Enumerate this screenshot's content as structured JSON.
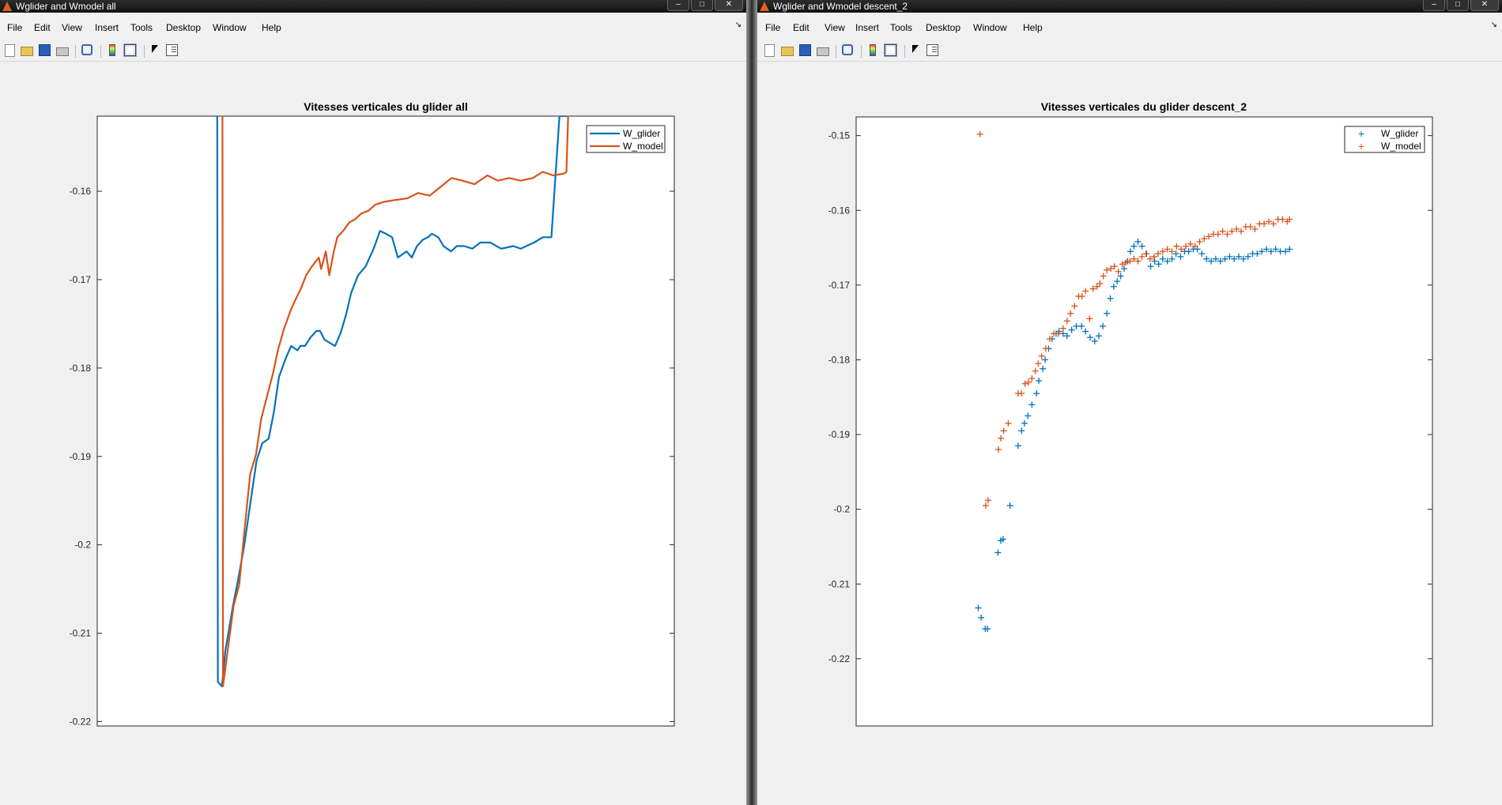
{
  "windows": [
    {
      "title": "Wglider and Wmodel all",
      "menu": [
        "File",
        "Edit",
        "View",
        "Insert",
        "Tools",
        "Desktop",
        "Window",
        "Help"
      ],
      "chart_title": "Vitesses verticales du glider all",
      "yticks": [
        "-0.16",
        "-0.17",
        "-0.18",
        "-0.19",
        "-0.2",
        "-0.21",
        "-0.22"
      ],
      "legend": [
        "W_glider",
        "W_model"
      ]
    },
    {
      "title": "Wglider and Wmodel descent_2",
      "menu": [
        "File",
        "Edit",
        "View",
        "Insert",
        "Tools",
        "Desktop",
        "Window",
        "Help"
      ],
      "chart_title": "Vitesses verticales du glider descent_2",
      "yticks": [
        "-0.15",
        "-0.16",
        "-0.17",
        "-0.18",
        "-0.19",
        "-0.2",
        "-0.21",
        "-0.22"
      ],
      "legend": [
        "W_glider",
        "W_model"
      ]
    }
  ],
  "colors": {
    "w_glider": "#0072bd",
    "w_model": "#d95319"
  },
  "chart_data": [
    {
      "type": "line",
      "title": "Vitesses verticales du glider all",
      "xlabel": "",
      "ylabel": "",
      "xlim": [
        0,
        100
      ],
      "ylim": [
        -0.2205,
        -0.1515
      ],
      "grid": false,
      "legend_position": "top-right",
      "series": [
        {
          "name": "W_glider",
          "x": [
            20.8,
            20.9,
            21.6,
            22.2,
            23.5,
            24.4,
            25.5,
            26.6,
            27.6,
            28.6,
            29.7,
            30.6,
            31.5,
            32.6,
            33.6,
            34.7,
            35.2,
            36.0,
            37.0,
            38.0,
            38.6,
            39.4,
            41.2,
            42.2,
            43.1,
            44.0,
            45.2,
            46.5,
            47.9,
            49.0,
            50.0,
            51.1,
            52.1,
            53.6,
            54.5,
            55.4,
            56.4,
            57.3,
            58.0,
            59.1,
            60.0,
            61.3,
            62.3,
            63.6,
            65.0,
            66.4,
            68.1,
            70.0,
            72.1,
            73.4,
            75.7,
            77.2,
            78.7,
            80.1,
            81.5,
            81.6,
            81.7
          ],
          "y": [
            -0.1515,
            -0.2155,
            -0.216,
            -0.212,
            -0.207,
            -0.204,
            -0.2,
            -0.195,
            -0.1905,
            -0.1885,
            -0.188,
            -0.185,
            -0.181,
            -0.179,
            -0.1775,
            -0.178,
            -0.1775,
            -0.1775,
            -0.1765,
            -0.1758,
            -0.1758,
            -0.1768,
            -0.1775,
            -0.176,
            -0.174,
            -0.1715,
            -0.1695,
            -0.1685,
            -0.1665,
            -0.1645,
            -0.1648,
            -0.1652,
            -0.1675,
            -0.1668,
            -0.1675,
            -0.1662,
            -0.1655,
            -0.1652,
            -0.1648,
            -0.1652,
            -0.1662,
            -0.1668,
            -0.1662,
            -0.1662,
            -0.1665,
            -0.1658,
            -0.1658,
            -0.1665,
            -0.1662,
            -0.1665,
            -0.1658,
            -0.1652,
            -0.1652,
            -0.1515,
            -0.1515,
            -0.1515,
            -0.1515
          ]
        },
        {
          "name": "W_model",
          "x": [
            21.7,
            21.8,
            22.7,
            23.6,
            24.6,
            25.5,
            26.5,
            27.5,
            28.4,
            28.9,
            29.5,
            30.5,
            31.3,
            32.4,
            33.5,
            34.4,
            35.3,
            36.2,
            37.2,
            38.4,
            38.8,
            39.6,
            40.2,
            41.0,
            41.6,
            42.6,
            43.7,
            44.6,
            45.8,
            47.0,
            48.2,
            49.7,
            51.5,
            53.7,
            55.6,
            57.6,
            59.5,
            61.4,
            63.3,
            65.4,
            67.6,
            69.4,
            71.4,
            73.4,
            75.5,
            77.2,
            79.0,
            80.9,
            81.3,
            81.6,
            81.7
          ],
          "y": [
            -0.1515,
            -0.216,
            -0.2115,
            -0.207,
            -0.2045,
            -0.1985,
            -0.192,
            -0.1898,
            -0.1858,
            -0.1845,
            -0.183,
            -0.1805,
            -0.178,
            -0.1755,
            -0.1735,
            -0.1722,
            -0.171,
            -0.1695,
            -0.1685,
            -0.1675,
            -0.1688,
            -0.1668,
            -0.1695,
            -0.1668,
            -0.1652,
            -0.1645,
            -0.1635,
            -0.1632,
            -0.1625,
            -0.1622,
            -0.1615,
            -0.1612,
            -0.161,
            -0.1608,
            -0.1602,
            -0.1605,
            -0.1595,
            -0.1585,
            -0.1588,
            -0.1592,
            -0.1582,
            -0.1588,
            -0.1585,
            -0.1588,
            -0.1585,
            -0.1578,
            -0.1582,
            -0.158,
            -0.1578,
            -0.1515,
            -0.1515
          ]
        }
      ]
    },
    {
      "type": "scatter",
      "title": "Vitesses verticales du glider descent_2",
      "xlabel": "",
      "ylabel": "",
      "xlim": [
        0,
        100
      ],
      "ylim": [
        -0.229,
        -0.1475
      ],
      "grid": false,
      "legend_position": "top-right",
      "series": [
        {
          "name": "W_glider",
          "x": [
            21.2,
            21.7,
            22.4,
            22.8,
            24.6,
            25.1,
            25.5,
            26.7,
            28.1,
            28.7,
            29.2,
            29.8,
            30.5,
            31.3,
            31.7,
            32.4,
            32.8,
            33.4,
            34.0,
            34.7,
            35.2,
            35.9,
            36.6,
            37.4,
            38.2,
            39.1,
            39.8,
            40.6,
            41.4,
            42.1,
            42.8,
            43.5,
            44.1,
            44.7,
            45.3,
            45.9,
            46.5,
            47.1,
            47.6,
            48.2,
            48.9,
            49.6,
            50.4,
            51.1,
            51.8,
            52.5,
            53.2,
            54.0,
            54.8,
            55.5,
            56.3,
            57.0,
            57.7,
            58.5,
            59.2,
            60.0,
            60.8,
            61.6,
            62.4,
            63.2,
            64.0,
            64.8,
            65.6,
            66.4,
            67.2,
            68.0,
            68.8,
            69.6,
            70.4,
            71.2,
            72.0,
            72.8,
            73.6,
            74.5,
            75.2
          ],
          "y": [
            -0.2132,
            -0.2145,
            -0.216,
            -0.216,
            -0.2058,
            -0.2042,
            -0.204,
            -0.1995,
            -0.1915,
            -0.1895,
            -0.1885,
            -0.1875,
            -0.186,
            -0.1845,
            -0.1828,
            -0.1812,
            -0.18,
            -0.1785,
            -0.1772,
            -0.1765,
            -0.1762,
            -0.1765,
            -0.1768,
            -0.176,
            -0.1755,
            -0.1755,
            -0.1762,
            -0.177,
            -0.1775,
            -0.1768,
            -0.1755,
            -0.1738,
            -0.1718,
            -0.1702,
            -0.1695,
            -0.1688,
            -0.1678,
            -0.1668,
            -0.1655,
            -0.1648,
            -0.1642,
            -0.1648,
            -0.1658,
            -0.1675,
            -0.1668,
            -0.1672,
            -0.1665,
            -0.1668,
            -0.1665,
            -0.1658,
            -0.1662,
            -0.1655,
            -0.1655,
            -0.1652,
            -0.1652,
            -0.1658,
            -0.1665,
            -0.1668,
            -0.1665,
            -0.1668,
            -0.1665,
            -0.1662,
            -0.1665,
            -0.1662,
            -0.1665,
            -0.1662,
            -0.1658,
            -0.1658,
            -0.1655,
            -0.1652,
            -0.1655,
            -0.1652,
            -0.1655,
            -0.1655,
            -0.1652
          ],
          "marker": "+"
        },
        {
          "name": "W_model",
          "x": [
            21.5,
            22.5,
            22.9,
            24.7,
            25.1,
            25.6,
            26.4,
            28.1,
            28.7,
            29.3,
            29.9,
            30.5,
            31.1,
            31.6,
            32.2,
            32.9,
            33.6,
            34.3,
            35.1,
            35.9,
            36.6,
            37.2,
            37.9,
            38.6,
            39.2,
            39.8,
            40.5,
            41.1,
            41.8,
            42.3,
            42.9,
            43.5,
            44.2,
            44.8,
            45.5,
            46.2,
            46.8,
            47.5,
            48.2,
            48.9,
            49.6,
            50.3,
            51.0,
            51.7,
            52.4,
            53.2,
            54.0,
            54.8,
            55.6,
            56.4,
            57.2,
            58.0,
            58.8,
            59.6,
            60.4,
            61.2,
            62.0,
            62.8,
            63.6,
            64.4,
            65.2,
            66.0,
            66.8,
            67.6,
            68.4,
            69.2,
            70.0,
            70.8,
            71.6,
            72.4,
            73.2,
            74.0,
            74.8,
            75.2
          ],
          "y": [
            -0.1498,
            -0.1995,
            -0.1988,
            -0.192,
            -0.1905,
            -0.1895,
            -0.1885,
            -0.1845,
            -0.1845,
            -0.1832,
            -0.183,
            -0.1825,
            -0.1815,
            -0.1805,
            -0.1795,
            -0.1785,
            -0.1772,
            -0.1765,
            -0.1765,
            -0.1758,
            -0.1748,
            -0.1738,
            -0.1728,
            -0.1715,
            -0.1715,
            -0.1708,
            -0.1745,
            -0.1705,
            -0.1702,
            -0.1698,
            -0.1688,
            -0.168,
            -0.1678,
            -0.1675,
            -0.1682,
            -0.1672,
            -0.167,
            -0.1668,
            -0.1665,
            -0.1668,
            -0.1662,
            -0.1658,
            -0.1665,
            -0.1662,
            -0.1658,
            -0.1655,
            -0.1652,
            -0.1655,
            -0.1648,
            -0.1652,
            -0.1648,
            -0.1645,
            -0.1648,
            -0.1642,
            -0.1638,
            -0.1635,
            -0.1632,
            -0.1632,
            -0.1628,
            -0.1632,
            -0.1628,
            -0.1625,
            -0.1628,
            -0.1622,
            -0.1622,
            -0.1625,
            -0.1618,
            -0.1618,
            -0.1615,
            -0.1618,
            -0.1612,
            -0.1612,
            -0.1615,
            -0.1612
          ],
          "marker": "+"
        }
      ]
    }
  ]
}
